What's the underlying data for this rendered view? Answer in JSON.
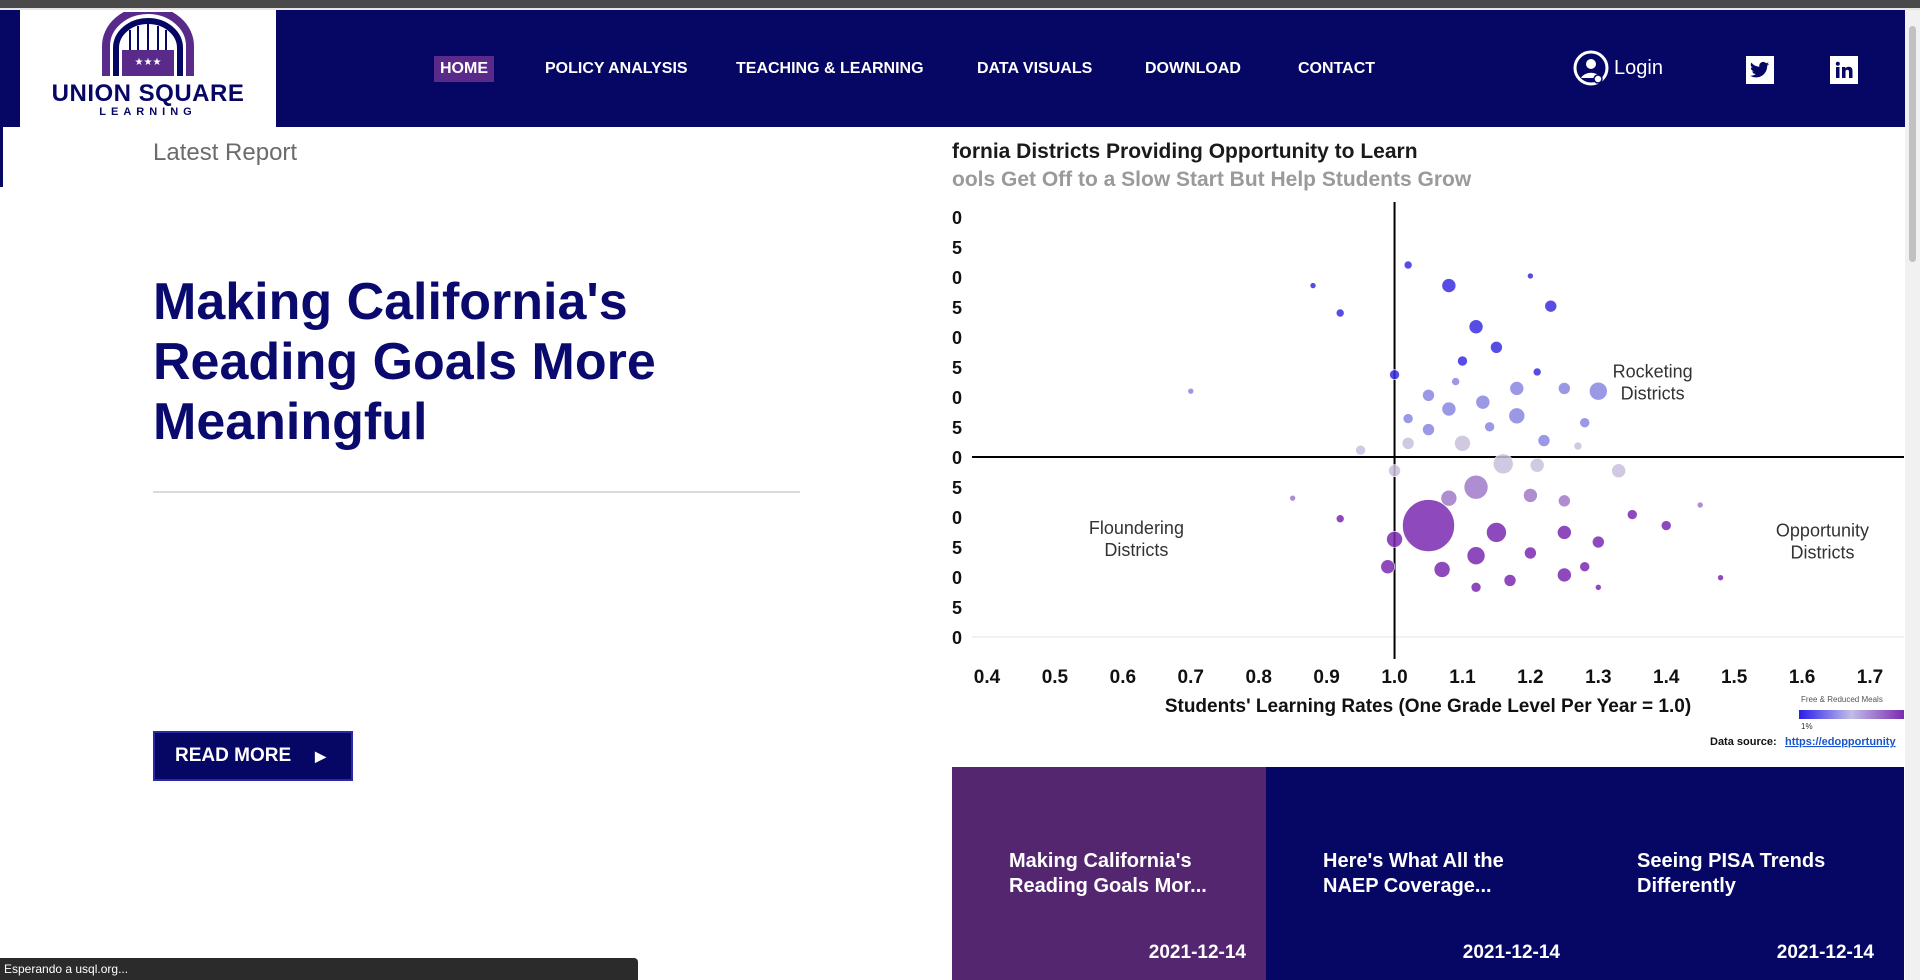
{
  "header": {
    "logo": {
      "name": "UNION SQUARE",
      "sub": "LEARNING"
    },
    "nav": [
      {
        "label": "HOME",
        "active": true
      },
      {
        "label": "POLICY ANALYSIS"
      },
      {
        "label": "TEACHING & LEARNING"
      },
      {
        "label": "DATA VISUALS"
      },
      {
        "label": "DOWNLOAD"
      },
      {
        "label": "CONTACT"
      }
    ],
    "login_label": "Login",
    "social": [
      "twitter-icon",
      "linkedin-icon"
    ]
  },
  "hero": {
    "kicker": "Latest Report",
    "headline": "Making California's Reading Goals More Meaningful",
    "cta": "READ MORE"
  },
  "chart_data": {
    "type": "scatter",
    "title": "fornia Districts Providing Opportunity to Learn",
    "subtitle": "ools Get Off to a Slow Start But Help Students Grow",
    "xlabel": "Students' Learning Rates (One Grade Level Per Year = 1.0)",
    "xticks": [
      "0.4",
      "0.5",
      "0.6",
      "0.7",
      "0.8",
      "0.9",
      "1.0",
      "1.1",
      "1.2",
      "1.3",
      "1.4",
      "1.5",
      "1.6",
      "1.7"
    ],
    "yticks": [
      "0",
      "5",
      "0",
      "5",
      "0",
      "5",
      "0",
      "5",
      "0",
      "5",
      "0",
      "5",
      "0",
      "5",
      "0"
    ],
    "xlim": [
      0.4,
      1.7
    ],
    "annotations": [
      {
        "text": [
          "Rocketing",
          "Districts"
        ],
        "x": 1.38,
        "y": 0.58
      },
      {
        "text": [
          "Floundering",
          "Districts"
        ],
        "x": 0.62,
        "y": -0.56
      },
      {
        "text": [
          "Opportunity",
          "Districts"
        ],
        "x": 1.63,
        "y": -0.58
      }
    ],
    "legend": {
      "title": "Free & Reduced Meals",
      "min_label": "1%",
      "position": "bottom-right"
    },
    "data_source_label": "Data source:",
    "data_source_link": "https://edopportunity",
    "points": [
      [
        1.02,
        1.4,
        4
      ],
      [
        1.08,
        1.25,
        7
      ],
      [
        1.2,
        1.32,
        3
      ],
      [
        1.23,
        1.1,
        6
      ],
      [
        1.12,
        0.95,
        7
      ],
      [
        1.15,
        0.8,
        6
      ],
      [
        1.0,
        0.6,
        5
      ],
      [
        1.09,
        0.55,
        4
      ],
      [
        1.21,
        0.62,
        4
      ],
      [
        1.25,
        0.5,
        6
      ],
      [
        1.3,
        0.48,
        9
      ],
      [
        1.18,
        0.3,
        8
      ],
      [
        1.08,
        0.35,
        7
      ],
      [
        1.05,
        0.2,
        6
      ],
      [
        1.14,
        0.22,
        5
      ],
      [
        1.22,
        0.12,
        6
      ],
      [
        1.27,
        0.08,
        4
      ],
      [
        0.95,
        0.05,
        5
      ],
      [
        1.02,
        0.1,
        6
      ],
      [
        1.16,
        -0.05,
        10
      ],
      [
        1.21,
        -0.06,
        7
      ],
      [
        1.33,
        -0.1,
        7
      ],
      [
        1.12,
        -0.22,
        12
      ],
      [
        1.2,
        -0.28,
        7
      ],
      [
        1.08,
        -0.3,
        8
      ],
      [
        1.25,
        -0.32,
        6
      ],
      [
        1.35,
        -0.42,
        5
      ],
      [
        1.05,
        -0.5,
        26
      ],
      [
        1.15,
        -0.55,
        10
      ],
      [
        1.25,
        -0.55,
        7
      ],
      [
        1.0,
        -0.6,
        8
      ],
      [
        1.12,
        -0.72,
        9
      ],
      [
        1.2,
        -0.7,
        6
      ],
      [
        1.3,
        -0.62,
        6
      ],
      [
        0.99,
        -0.8,
        7
      ],
      [
        1.07,
        -0.82,
        8
      ],
      [
        1.17,
        -0.9,
        6
      ],
      [
        1.25,
        -0.86,
        7
      ],
      [
        1.28,
        -0.8,
        5
      ],
      [
        1.12,
        -0.95,
        5
      ],
      [
        1.4,
        -0.5,
        5
      ],
      [
        0.92,
        -0.45,
        4
      ],
      [
        0.7,
        0.48,
        3
      ],
      [
        0.88,
        1.25,
        3
      ],
      [
        0.92,
        1.05,
        4
      ],
      [
        1.3,
        -0.95,
        3
      ],
      [
        1.48,
        -0.88,
        3
      ],
      [
        0.85,
        -0.3,
        3
      ],
      [
        1.45,
        -0.35,
        3
      ],
      [
        1.1,
        0.7,
        5
      ],
      [
        1.05,
        0.45,
        6
      ],
      [
        1.18,
        0.5,
        7
      ],
      [
        1.13,
        0.4,
        7
      ],
      [
        1.02,
        0.28,
        5
      ],
      [
        1.28,
        0.25,
        5
      ],
      [
        1.1,
        0.1,
        8
      ],
      [
        1.0,
        -0.1,
        6
      ]
    ]
  },
  "cards": [
    {
      "title": "Making California's Reading Goals Mor...",
      "date": "2021-12-14"
    },
    {
      "title": "Here's What All the NAEP Coverage...",
      "date": "2021-12-14"
    },
    {
      "title": "Seeing PISA Trends Differently",
      "date": "2021-12-14"
    }
  ],
  "status": "Esperando a usql.org..."
}
